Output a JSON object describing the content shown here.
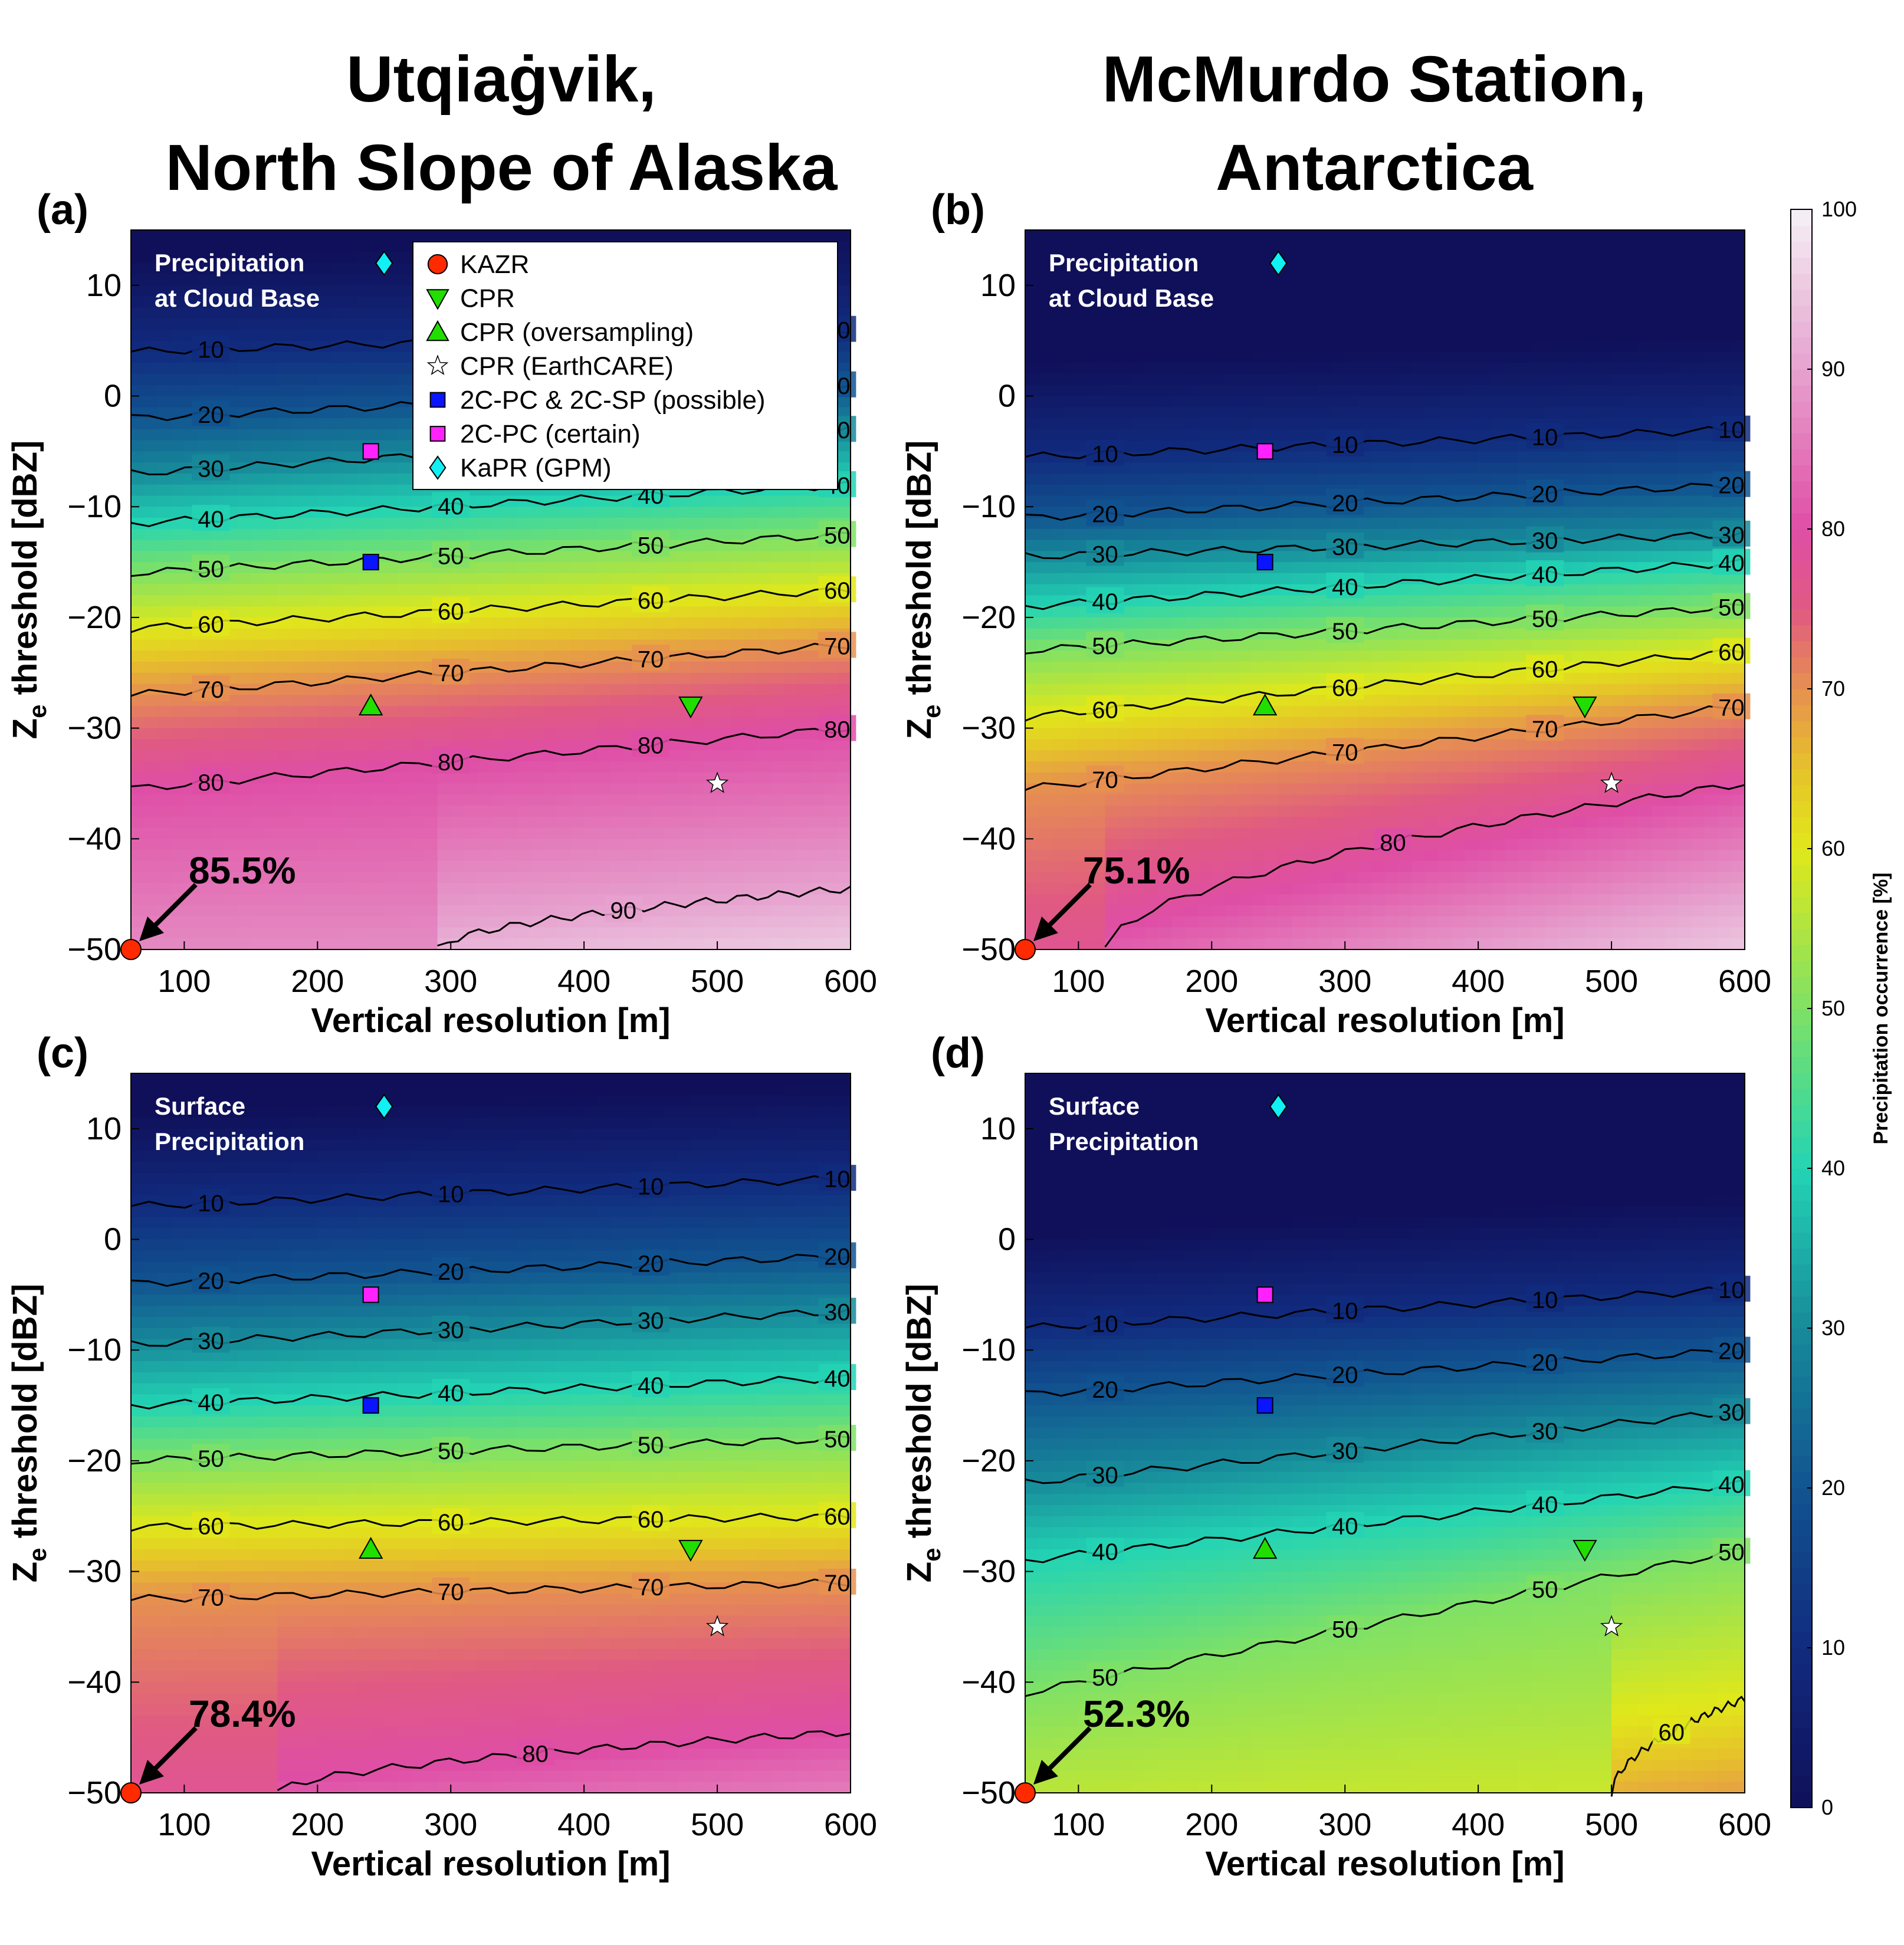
{
  "titles": {
    "left": [
      "Utqiaġvik,",
      "North Slope of Alaska"
    ],
    "right": [
      "McMurdo Station,",
      "Antarctica"
    ]
  },
  "colorbar": {
    "label": "Precipitation occurrence [%]",
    "ticks": [
      0,
      10,
      20,
      30,
      40,
      50,
      60,
      70,
      80,
      90,
      100
    ]
  },
  "legend": [
    {
      "label": "KAZR",
      "marker": "circle",
      "color": "#ff2a00"
    },
    {
      "label": "CPR",
      "marker": "triangle-down",
      "color": "#22dd00"
    },
    {
      "label": "CPR (oversampling)",
      "marker": "triangle-up",
      "color": "#22dd00"
    },
    {
      "label": "CPR (EarthCARE)",
      "marker": "star",
      "color": "#ffffff"
    },
    {
      "label": "2C-PC & 2C-SP (possible)",
      "marker": "square",
      "color": "#0a14ff"
    },
    {
      "label": "2C-PC (certain)",
      "marker": "square",
      "color": "#ff22ff"
    },
    {
      "label": "KaPR (GPM)",
      "marker": "diamond",
      "color": "#11f0f5"
    }
  ],
  "chart_data": [
    {
      "type": "heatmap",
      "panel": "(a)",
      "annotation": [
        "Precipitation",
        "at Cloud Base"
      ],
      "kazr_value": "85.5%",
      "xlabel": "Vertical resolution [m]",
      "ylabel": "Ze threshold [dBZ]",
      "xlim": [
        60,
        600
      ],
      "ylim": [
        -50,
        15
      ],
      "xticks": [
        100,
        200,
        300,
        400,
        500,
        600
      ],
      "yticks": [
        -50,
        -40,
        -30,
        -20,
        -10,
        0,
        10
      ],
      "contours": [
        {
          "level": 10,
          "y_at_x60": 4,
          "y_at_x600": 6
        },
        {
          "level": 20,
          "y_at_x60": -2,
          "y_at_x600": 1
        },
        {
          "level": 30,
          "y_at_x60": -7,
          "y_at_x600": -3
        },
        {
          "level": 40,
          "y_at_x60": -11.5,
          "y_at_x600": -8
        },
        {
          "level": 50,
          "y_at_x60": -16,
          "y_at_x600": -12.5
        },
        {
          "level": 60,
          "y_at_x60": -21,
          "y_at_x600": -17.5
        },
        {
          "level": 70,
          "y_at_x60": -27,
          "y_at_x600": -22.5
        },
        {
          "level": 80,
          "y_at_x60": -35.5,
          "y_at_x600": -30
        },
        {
          "level": 90,
          "y_at_x60": -50,
          "y_at_x600": -44.5,
          "x_start": 290
        }
      ],
      "points": [
        {
          "name": "KAZR",
          "x": 60,
          "y": -50
        },
        {
          "name": "CPR",
          "x": 480,
          "y": -28
        },
        {
          "name": "CPR (oversampling)",
          "x": 240,
          "y": -28
        },
        {
          "name": "CPR (EarthCARE)",
          "x": 500,
          "y": -35
        },
        {
          "name": "2C-PC & 2C-SP (possible)",
          "x": 240,
          "y": -15
        },
        {
          "name": "2C-PC (certain)",
          "x": 240,
          "y": -5
        },
        {
          "name": "KaPR (GPM)",
          "x": 250,
          "y": 12
        }
      ]
    },
    {
      "type": "heatmap",
      "panel": "(b)",
      "annotation": [
        "Precipitation",
        "at Cloud Base"
      ],
      "kazr_value": "75.1%",
      "xlabel": "Vertical resolution [m]",
      "ylabel": "Ze threshold [dBZ]",
      "xlim": [
        60,
        600
      ],
      "ylim": [
        -50,
        15
      ],
      "xticks": [
        100,
        200,
        300,
        400,
        500,
        600
      ],
      "yticks": [
        -50,
        -40,
        -30,
        -20,
        -10,
        0,
        10
      ],
      "contours": [
        {
          "level": 10,
          "y_at_x60": -5.5,
          "y_at_x600": -3
        },
        {
          "level": 20,
          "y_at_x60": -11,
          "y_at_x600": -8
        },
        {
          "level": 30,
          "y_at_x60": -14.5,
          "y_at_x600": -12.5
        },
        {
          "level": 40,
          "y_at_x60": -19,
          "y_at_x600": -15
        },
        {
          "level": 50,
          "y_at_x60": -23,
          "y_at_x600": -19
        },
        {
          "level": 60,
          "y_at_x60": -29,
          "y_at_x600": -23
        },
        {
          "level": 70,
          "y_at_x60": -35.5,
          "y_at_x600": -28
        },
        {
          "level": 80,
          "y_at_x60": -50,
          "y_at_x600": -35,
          "x_start": 120
        }
      ],
      "points": [
        {
          "name": "KAZR",
          "x": 60,
          "y": -50
        },
        {
          "name": "CPR",
          "x": 480,
          "y": -28
        },
        {
          "name": "CPR (oversampling)",
          "x": 240,
          "y": -28
        },
        {
          "name": "CPR (EarthCARE)",
          "x": 500,
          "y": -35
        },
        {
          "name": "2C-PC & 2C-SP (possible)",
          "x": 240,
          "y": -15
        },
        {
          "name": "2C-PC (certain)",
          "x": 240,
          "y": -5
        },
        {
          "name": "KaPR (GPM)",
          "x": 250,
          "y": 12
        }
      ]
    },
    {
      "type": "heatmap",
      "panel": "(c)",
      "annotation": [
        "Surface",
        "Precipitation"
      ],
      "kazr_value": "78.4%",
      "xlabel": "Vertical resolution [m]",
      "ylabel": "Ze threshold [dBZ]",
      "xlim": [
        60,
        600
      ],
      "ylim": [
        -50,
        15
      ],
      "xticks": [
        100,
        200,
        300,
        400,
        500,
        600
      ],
      "yticks": [
        -50,
        -40,
        -30,
        -20,
        -10,
        0,
        10
      ],
      "contours": [
        {
          "level": 10,
          "y_at_x60": 3,
          "y_at_x600": 5.5
        },
        {
          "level": 20,
          "y_at_x60": -4,
          "y_at_x600": -1.5
        },
        {
          "level": 30,
          "y_at_x60": -9.5,
          "y_at_x600": -6.5
        },
        {
          "level": 40,
          "y_at_x60": -15,
          "y_at_x600": -12.5
        },
        {
          "level": 50,
          "y_at_x60": -20,
          "y_at_x600": -18
        },
        {
          "level": 60,
          "y_at_x60": -26,
          "y_at_x600": -25
        },
        {
          "level": 70,
          "y_at_x60": -32.5,
          "y_at_x600": -31
        },
        {
          "level": 80,
          "y_at_x60": -50,
          "y_at_x600": -44.5,
          "x_start": 170
        }
      ],
      "points": [
        {
          "name": "KAZR",
          "x": 60,
          "y": -50
        },
        {
          "name": "CPR",
          "x": 480,
          "y": -28
        },
        {
          "name": "CPR (oversampling)",
          "x": 240,
          "y": -28
        },
        {
          "name": "CPR (EarthCARE)",
          "x": 500,
          "y": -35
        },
        {
          "name": "2C-PC & 2C-SP (possible)",
          "x": 240,
          "y": -15
        },
        {
          "name": "2C-PC (certain)",
          "x": 240,
          "y": -5
        },
        {
          "name": "KaPR (GPM)",
          "x": 250,
          "y": 12
        }
      ]
    },
    {
      "type": "heatmap",
      "panel": "(d)",
      "annotation": [
        "Surface",
        "Precipitation"
      ],
      "kazr_value": "52.3%",
      "xlabel": "Vertical resolution [m]",
      "ylabel": "Ze threshold [dBZ]",
      "xlim": [
        60,
        600
      ],
      "ylim": [
        -50,
        15
      ],
      "xticks": [
        100,
        200,
        300,
        400,
        500,
        600
      ],
      "yticks": [
        -50,
        -40,
        -30,
        -20,
        -10,
        0,
        10
      ],
      "contours": [
        {
          "level": 10,
          "y_at_x60": -8,
          "y_at_x600": -4.5
        },
        {
          "level": 20,
          "y_at_x60": -14,
          "y_at_x600": -10
        },
        {
          "level": 30,
          "y_at_x60": -22,
          "y_at_x600": -15.5
        },
        {
          "level": 40,
          "y_at_x60": -29,
          "y_at_x600": -22
        },
        {
          "level": 50,
          "y_at_x60": -41,
          "y_at_x600": -28
        },
        {
          "level": 60,
          "y_at_x60": -50,
          "y_at_x600": -41.5,
          "x_start": 500
        }
      ],
      "points": [
        {
          "name": "KAZR",
          "x": 60,
          "y": -50
        },
        {
          "name": "CPR",
          "x": 480,
          "y": -28
        },
        {
          "name": "CPR (oversampling)",
          "x": 240,
          "y": -28
        },
        {
          "name": "CPR (EarthCARE)",
          "x": 500,
          "y": -35
        },
        {
          "name": "2C-PC & 2C-SP (possible)",
          "x": 240,
          "y": -15
        },
        {
          "name": "2C-PC (certain)",
          "x": 240,
          "y": -5
        },
        {
          "name": "KaPR (GPM)",
          "x": 250,
          "y": 12
        }
      ]
    }
  ]
}
